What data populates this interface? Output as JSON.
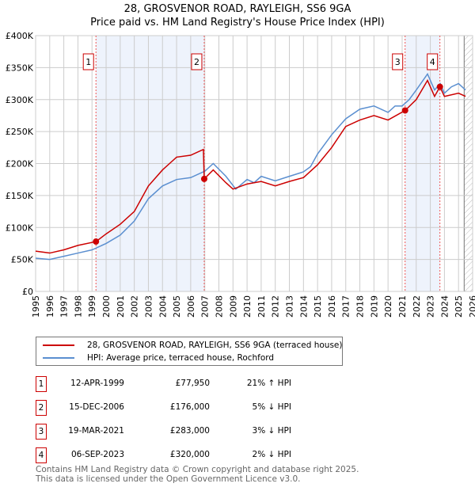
{
  "title": "28, GROSVENOR ROAD, RAYLEIGH, SS6 9GA",
  "subtitle": "Price paid vs. HM Land Registry's House Price Index (HPI)",
  "chart_data": {
    "type": "line",
    "xlim": [
      1995,
      2026
    ],
    "ylim": [
      0,
      400000
    ],
    "y_ticks": [
      {
        "v": 0,
        "l": "£0"
      },
      {
        "v": 50000,
        "l": "£50K"
      },
      {
        "v": 100000,
        "l": "£100K"
      },
      {
        "v": 150000,
        "l": "£150K"
      },
      {
        "v": 200000,
        "l": "£200K"
      },
      {
        "v": 250000,
        "l": "£250K"
      },
      {
        "v": 300000,
        "l": "£300K"
      },
      {
        "v": 350000,
        "l": "£350K"
      },
      {
        "v": 400000,
        "l": "£400K"
      }
    ],
    "x_ticks": [
      "1995",
      "1996",
      "1997",
      "1998",
      "1999",
      "2000",
      "2001",
      "2002",
      "2003",
      "2004",
      "2005",
      "2006",
      "2007",
      "2008",
      "2009",
      "2010",
      "2011",
      "2012",
      "2013",
      "2014",
      "2015",
      "2016",
      "2017",
      "2018",
      "2019",
      "2020",
      "2021",
      "2022",
      "2023",
      "2024",
      "2025",
      "2026"
    ],
    "series": [
      {
        "name": "28, GROSVENOR ROAD, RAYLEIGH, SS6 9GA (terraced house)",
        "color": "#cc0000",
        "points": [
          [
            1995,
            63000
          ],
          [
            1996,
            60000
          ],
          [
            1997,
            65000
          ],
          [
            1998,
            72000
          ],
          [
            1999.28,
            77950
          ],
          [
            2000,
            90000
          ],
          [
            2001,
            105000
          ],
          [
            2002,
            125000
          ],
          [
            2003,
            165000
          ],
          [
            2004,
            190000
          ],
          [
            2004.5,
            200000
          ],
          [
            2005,
            210000
          ],
          [
            2006,
            213000
          ],
          [
            2006.9,
            222000
          ],
          [
            2006.96,
            176000
          ],
          [
            2007.6,
            190000
          ],
          [
            2008.5,
            170000
          ],
          [
            2009,
            160000
          ],
          [
            2010,
            168000
          ],
          [
            2011,
            172000
          ],
          [
            2012,
            165000
          ],
          [
            2013,
            172000
          ],
          [
            2014,
            178000
          ],
          [
            2015,
            198000
          ],
          [
            2016,
            225000
          ],
          [
            2017,
            258000
          ],
          [
            2018,
            268000
          ],
          [
            2019,
            275000
          ],
          [
            2020,
            268000
          ],
          [
            2021.21,
            283000
          ],
          [
            2022,
            300000
          ],
          [
            2022.8,
            330000
          ],
          [
            2023.3,
            305000
          ],
          [
            2023.68,
            320000
          ],
          [
            2024,
            305000
          ],
          [
            2025,
            310000
          ],
          [
            2025.5,
            305000
          ]
        ]
      },
      {
        "name": "HPI: Average price, terraced house, Rochford",
        "color": "#5b8fd0",
        "points": [
          [
            1995,
            52000
          ],
          [
            1996,
            50000
          ],
          [
            1997,
            55000
          ],
          [
            1998,
            60000
          ],
          [
            1999,
            65000
          ],
          [
            2000,
            75000
          ],
          [
            2001,
            88000
          ],
          [
            2002,
            110000
          ],
          [
            2003,
            145000
          ],
          [
            2004,
            165000
          ],
          [
            2005,
            175000
          ],
          [
            2006,
            178000
          ],
          [
            2007,
            188000
          ],
          [
            2007.6,
            200000
          ],
          [
            2008.5,
            180000
          ],
          [
            2009.2,
            160000
          ],
          [
            2010,
            175000
          ],
          [
            2010.5,
            170000
          ],
          [
            2011,
            180000
          ],
          [
            2012,
            173000
          ],
          [
            2013,
            180000
          ],
          [
            2014,
            187000
          ],
          [
            2014.5,
            195000
          ],
          [
            2015,
            215000
          ],
          [
            2016,
            245000
          ],
          [
            2017,
            270000
          ],
          [
            2018,
            285000
          ],
          [
            2019,
            290000
          ],
          [
            2020,
            280000
          ],
          [
            2020.5,
            290000
          ],
          [
            2021,
            290000
          ],
          [
            2021.5,
            300000
          ],
          [
            2022,
            315000
          ],
          [
            2022.8,
            340000
          ],
          [
            2023.3,
            315000
          ],
          [
            2023.7,
            325000
          ],
          [
            2024,
            310000
          ],
          [
            2024.5,
            320000
          ],
          [
            2025,
            325000
          ],
          [
            2025.5,
            315000
          ]
        ]
      }
    ],
    "sales": [
      {
        "label": "1",
        "x": 1999.28,
        "y": 77950
      },
      {
        "label": "2",
        "x": 2006.96,
        "y": 176000
      },
      {
        "label": "3",
        "x": 2021.21,
        "y": 283000
      },
      {
        "label": "4",
        "x": 2023.68,
        "y": 320000
      }
    ],
    "shaded": [
      [
        1999.28,
        2006.96
      ],
      [
        2021.21,
        2023.68
      ]
    ],
    "forecast_from": 2025.4
  },
  "table": [
    {
      "num": "1",
      "date": "12-APR-1999",
      "price": "£77,950",
      "hpi": "21% ↑ HPI"
    },
    {
      "num": "2",
      "date": "15-DEC-2006",
      "price": "£176,000",
      "hpi": "5% ↓ HPI"
    },
    {
      "num": "3",
      "date": "19-MAR-2021",
      "price": "£283,000",
      "hpi": "3% ↓ HPI"
    },
    {
      "num": "4",
      "date": "06-SEP-2023",
      "price": "£320,000",
      "hpi": "2% ↓ HPI"
    }
  ],
  "footer": [
    "Contains HM Land Registry data © Crown copyright and database right 2025.",
    "This data is licensed under the Open Government Licence v3.0."
  ]
}
